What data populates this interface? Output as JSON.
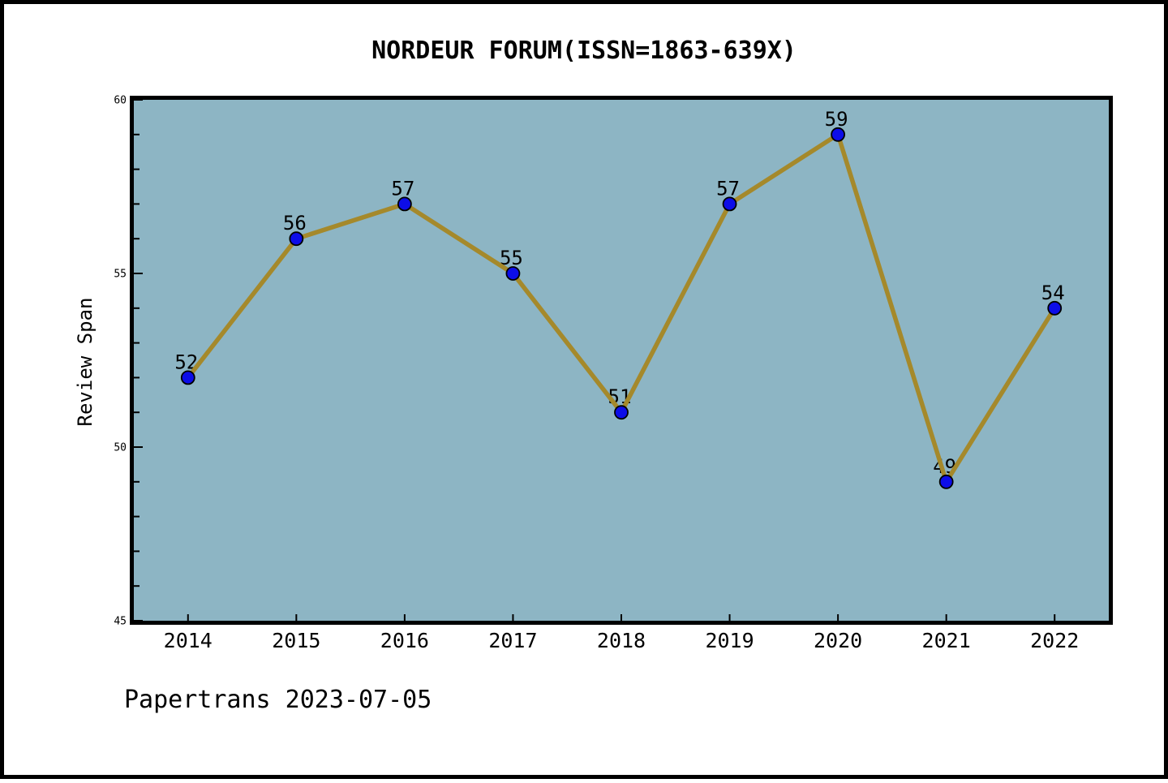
{
  "page": {
    "background": "#ffffff",
    "border_color": "#000000"
  },
  "chart_data": {
    "type": "line",
    "title": "NORDEUR FORUM(ISSN=1863-639X)",
    "xlabel": "",
    "ylabel": "Review Span",
    "footer": "Papertrans 2023-07-05",
    "categories": [
      "2014",
      "2015",
      "2016",
      "2017",
      "2018",
      "2019",
      "2020",
      "2021",
      "2022"
    ],
    "series": [
      {
        "name": "Review Span",
        "values": [
          52,
          56,
          57,
          55,
          51,
          57,
          59,
          49,
          54
        ]
      }
    ],
    "point_labels": [
      "52",
      "56",
      "57",
      "55",
      "51",
      "57",
      "59",
      "49",
      "54"
    ],
    "ylim": [
      45,
      60
    ],
    "yticks_labeled": [
      45,
      50,
      55,
      60
    ],
    "ytick_minor_step": 1,
    "grid": false,
    "legend_position": "none",
    "colors": {
      "plot_background": "#8db5c4",
      "line": "#a5892b",
      "marker_fill": "#0d0de8",
      "marker_edge": "#000000",
      "axis_frame": "#000000",
      "text": "#000000"
    }
  }
}
